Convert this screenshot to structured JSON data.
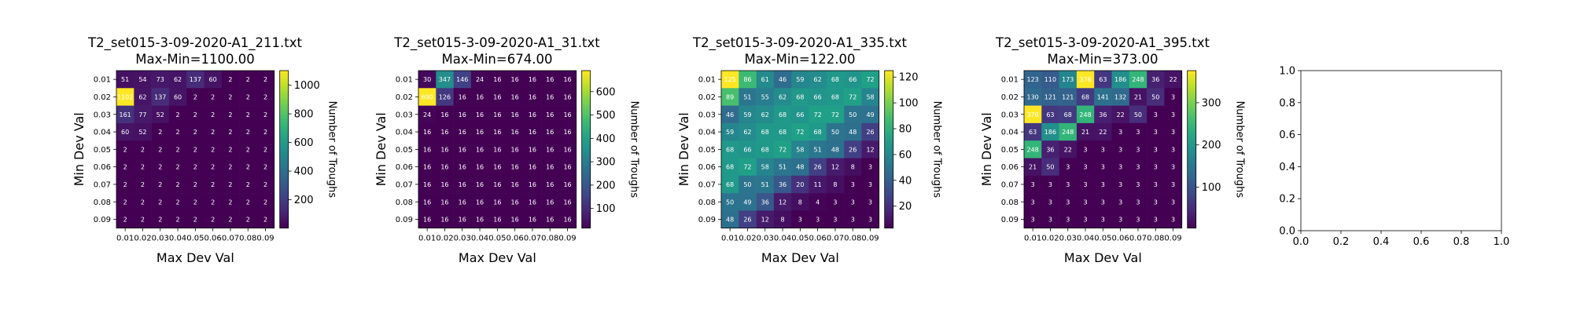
{
  "chart_data": [
    {
      "type": "heatmap",
      "title": "T2_set015-3-09-2020-A1_211.txt",
      "subtitle": "Max-Min=1100.00",
      "xlabel": "Max Dev Val",
      "ylabel": "Min Dev Val",
      "x_ticks": [
        "0.01",
        "0.02",
        "0.03",
        "0.04",
        "0.05",
        "0.06",
        "0.07",
        "0.08",
        "0.09"
      ],
      "y_ticks": [
        "0.01",
        "0.02",
        "0.03",
        "0.04",
        "0.05",
        "0.06",
        "0.07",
        "0.08",
        "0.09"
      ],
      "colorbar_label": "Number of Troughs",
      "colorbar_ticks": [
        200,
        400,
        600,
        800,
        1000
      ],
      "vmin": 2,
      "vmax": 1102,
      "values": [
        [
          51,
          54,
          73,
          62,
          137,
          60,
          2,
          2,
          2
        ],
        [
          1102,
          62,
          137,
          60,
          2,
          2,
          2,
          2,
          2
        ],
        [
          161,
          77,
          52,
          2,
          2,
          2,
          2,
          2,
          2
        ],
        [
          60,
          52,
          2,
          2,
          2,
          2,
          2,
          2,
          2
        ],
        [
          2,
          2,
          2,
          2,
          2,
          2,
          2,
          2,
          2
        ],
        [
          2,
          2,
          2,
          2,
          2,
          2,
          2,
          2,
          2
        ],
        [
          2,
          2,
          2,
          2,
          2,
          2,
          2,
          2,
          2
        ],
        [
          2,
          2,
          2,
          2,
          2,
          2,
          2,
          2,
          2
        ],
        [
          2,
          2,
          2,
          2,
          2,
          2,
          2,
          2,
          2
        ]
      ]
    },
    {
      "type": "heatmap",
      "title": "T2_set015-3-09-2020-A1_31.txt",
      "subtitle": "Max-Min=674.00",
      "xlabel": "Max Dev Val",
      "ylabel": "Min Dev Val",
      "x_ticks": [
        "0.01",
        "0.02",
        "0.03",
        "0.04",
        "0.05",
        "0.06",
        "0.07",
        "0.08",
        "0.09"
      ],
      "y_ticks": [
        "0.01",
        "0.02",
        "0.03",
        "0.04",
        "0.05",
        "0.06",
        "0.07",
        "0.08",
        "0.09"
      ],
      "colorbar_label": "Number of Troughs",
      "colorbar_ticks": [
        100,
        200,
        300,
        400,
        500,
        600
      ],
      "vmin": 16,
      "vmax": 690,
      "values": [
        [
          30,
          347,
          146,
          24,
          16,
          16,
          16,
          16,
          16
        ],
        [
          690,
          126,
          16,
          16,
          16,
          16,
          16,
          16,
          16
        ],
        [
          24,
          16,
          16,
          16,
          16,
          16,
          16,
          16,
          16
        ],
        [
          16,
          16,
          16,
          16,
          16,
          16,
          16,
          16,
          16
        ],
        [
          16,
          16,
          16,
          16,
          16,
          16,
          16,
          16,
          16
        ],
        [
          16,
          16,
          16,
          16,
          16,
          16,
          16,
          16,
          16
        ],
        [
          16,
          16,
          16,
          16,
          16,
          16,
          16,
          16,
          16
        ],
        [
          16,
          16,
          16,
          16,
          16,
          16,
          16,
          16,
          16
        ],
        [
          16,
          16,
          16,
          16,
          16,
          16,
          16,
          16,
          16
        ]
      ]
    },
    {
      "type": "heatmap",
      "title": "T2_set015-3-09-2020-A1_335.txt",
      "subtitle": "Max-Min=122.00",
      "xlabel": "Max Dev Val",
      "ylabel": "Min Dev Val",
      "x_ticks": [
        "0.01",
        "0.02",
        "0.03",
        "0.04",
        "0.05",
        "0.06",
        "0.07",
        "0.08",
        "0.09"
      ],
      "y_ticks": [
        "0.01",
        "0.02",
        "0.03",
        "0.04",
        "0.05",
        "0.06",
        "0.07",
        "0.08",
        "0.09"
      ],
      "colorbar_label": "Number of Troughs",
      "colorbar_ticks": [
        20,
        40,
        60,
        80,
        100,
        120
      ],
      "vmin": 3,
      "vmax": 125,
      "values": [
        [
          125,
          86,
          61,
          46,
          59,
          62,
          68,
          66,
          72
        ],
        [
          89,
          51,
          55,
          62,
          68,
          66,
          68,
          72,
          58
        ],
        [
          46,
          59,
          62,
          68,
          66,
          72,
          72,
          50,
          49
        ],
        [
          59,
          62,
          68,
          68,
          72,
          68,
          50,
          48,
          26
        ],
        [
          68,
          66,
          68,
          72,
          58,
          51,
          48,
          26,
          12
        ],
        [
          68,
          72,
          58,
          51,
          48,
          26,
          12,
          8,
          3
        ],
        [
          68,
          50,
          51,
          36,
          20,
          11,
          8,
          3,
          3
        ],
        [
          50,
          49,
          36,
          12,
          8,
          4,
          3,
          3,
          3
        ],
        [
          48,
          26,
          12,
          8,
          3,
          3,
          3,
          3,
          3
        ]
      ]
    },
    {
      "type": "heatmap",
      "title": "T2_set015-3-09-2020-A1_395.txt",
      "subtitle": "Max-Min=373.00",
      "xlabel": "Max Dev Val",
      "ylabel": "Min Dev Val",
      "x_ticks": [
        "0.01",
        "0.02",
        "0.03",
        "0.04",
        "0.05",
        "0.06",
        "0.07",
        "0.08",
        "0.09"
      ],
      "y_ticks": [
        "0.01",
        "0.02",
        "0.03",
        "0.04",
        "0.05",
        "0.06",
        "0.07",
        "0.08",
        "0.09"
      ],
      "colorbar_label": "Number of Troughs",
      "colorbar_ticks": [
        100,
        200,
        300
      ],
      "vmin": 3,
      "vmax": 376,
      "values": [
        [
          123,
          110,
          173,
          376,
          63,
          186,
          248,
          36,
          22
        ],
        [
          130,
          121,
          121,
          68,
          141,
          132,
          21,
          50,
          3
        ],
        [
          376,
          63,
          68,
          248,
          36,
          22,
          50,
          3,
          3
        ],
        [
          63,
          186,
          248,
          21,
          22,
          3,
          3,
          3,
          3
        ],
        [
          248,
          36,
          22,
          3,
          3,
          3,
          3,
          3,
          3
        ],
        [
          21,
          50,
          3,
          3,
          3,
          3,
          3,
          3,
          3
        ],
        [
          3,
          3,
          3,
          3,
          3,
          3,
          3,
          3,
          3
        ],
        [
          3,
          3,
          3,
          3,
          3,
          3,
          3,
          3,
          3
        ],
        [
          3,
          3,
          3,
          3,
          3,
          3,
          3,
          3,
          3
        ]
      ]
    },
    {
      "type": "scatter",
      "title": "",
      "xlabel": "",
      "ylabel": "",
      "xlim": [
        0,
        1
      ],
      "ylim": [
        0,
        1
      ],
      "x_ticks": [
        "0.0",
        "0.2",
        "0.4",
        "0.6",
        "0.8",
        "1.0"
      ],
      "y_ticks": [
        "0.0",
        "0.2",
        "0.4",
        "0.6",
        "0.8",
        "1.0"
      ],
      "series": []
    }
  ]
}
